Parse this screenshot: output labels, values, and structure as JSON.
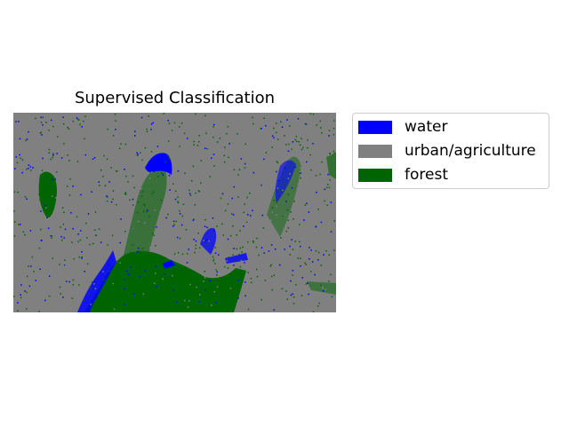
{
  "title": "Supervised Classification",
  "legend": [
    {
      "label": "water",
      "color": "#0000ff"
    },
    {
      "label": "urban/agriculture",
      "color": "#808080"
    },
    {
      "label": "forest",
      "color": "#006400"
    }
  ],
  "map": {
    "type": "classified-raster",
    "classes": [
      "water",
      "urban/agriculture",
      "forest"
    ],
    "background_class": "urban/agriculture"
  }
}
